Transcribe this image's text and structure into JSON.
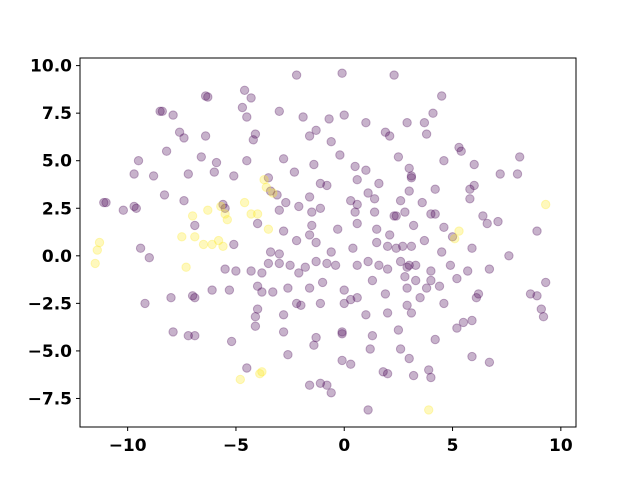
{
  "chart_data": {
    "type": "scatter",
    "title": "",
    "xlabel": "",
    "ylabel": "",
    "xlim": [
      -12.2,
      10.7
    ],
    "ylim": [
      -9.0,
      10.4
    ],
    "xticks": [
      -10,
      -5,
      0,
      5,
      10
    ],
    "xtick_labels": [
      "−10",
      "−5",
      "0",
      "5",
      "10"
    ],
    "yticks": [
      -7.5,
      -5.0,
      -2.5,
      0.0,
      2.5,
      5.0,
      7.5,
      10.0
    ],
    "ytick_labels": [
      "−7.5",
      "−5.0",
      "−2.5",
      "0.0",
      "2.5",
      "5.0",
      "7.5",
      "10.0"
    ],
    "grid": false,
    "legend": false,
    "alpha": 0.3,
    "colors": {
      "class_0": "#440154",
      "class_1": "#fde725"
    },
    "series": [
      {
        "color": "#440154",
        "points": [
          [
            -2.2,
            9.5
          ],
          [
            -0.1,
            9.6
          ],
          [
            2.3,
            9.5
          ],
          [
            -4.6,
            8.7
          ],
          [
            -4.3,
            8.3
          ],
          [
            -6.4,
            8.4
          ],
          [
            -6.3,
            8.35
          ],
          [
            -8.5,
            7.6
          ],
          [
            -8.4,
            7.6
          ],
          [
            -7.9,
            7.4
          ],
          [
            -4.7,
            7.8
          ],
          [
            -4.5,
            7.3
          ],
          [
            -1.9,
            7.3
          ],
          [
            -3.0,
            7.6
          ],
          [
            -0.7,
            7.2
          ],
          [
            0.0,
            7.4
          ],
          [
            1.0,
            7.0
          ],
          [
            2.9,
            7.0
          ],
          [
            3.7,
            7.0
          ],
          [
            4.1,
            7.5
          ],
          [
            4.5,
            8.4
          ],
          [
            -7.6,
            6.5
          ],
          [
            -7.4,
            6.2
          ],
          [
            -6.4,
            6.3
          ],
          [
            -4.1,
            6.4
          ],
          [
            -4.2,
            6.1
          ],
          [
            -1.6,
            6.3
          ],
          [
            -1.3,
            6.6
          ],
          [
            -0.6,
            6.0
          ],
          [
            1.9,
            6.5
          ],
          [
            2.1,
            6.3
          ],
          [
            3.8,
            6.4
          ],
          [
            -8.2,
            5.5
          ],
          [
            -9.5,
            5.0
          ],
          [
            -6.6,
            5.2
          ],
          [
            -5.9,
            4.9
          ],
          [
            -4.5,
            5.0
          ],
          [
            -2.8,
            5.1
          ],
          [
            -1.4,
            4.8
          ],
          [
            -0.2,
            5.3
          ],
          [
            0.5,
            4.7
          ],
          [
            1.0,
            4.5
          ],
          [
            2.5,
            5.2
          ],
          [
            3.0,
            4.6
          ],
          [
            3.1,
            4.2
          ],
          [
            4.6,
            5.0
          ],
          [
            5.3,
            5.7
          ],
          [
            5.4,
            5.5
          ],
          [
            6.0,
            4.8
          ],
          [
            8.1,
            5.2
          ],
          [
            -9.7,
            4.3
          ],
          [
            -8.8,
            4.2
          ],
          [
            -7.2,
            4.3
          ],
          [
            -6.0,
            4.4
          ],
          [
            -5.1,
            4.2
          ],
          [
            -3.5,
            4.1
          ],
          [
            -2.3,
            4.4
          ],
          [
            -1.1,
            3.8
          ],
          [
            -0.8,
            3.7
          ],
          [
            0.6,
            4.0
          ],
          [
            1.1,
            3.3
          ],
          [
            1.6,
            3.8
          ],
          [
            3.1,
            4.1
          ],
          [
            4.2,
            3.5
          ],
          [
            5.8,
            3.5
          ],
          [
            6.0,
            3.7
          ],
          [
            7.2,
            4.3
          ],
          [
            8.0,
            4.3
          ],
          [
            -11.1,
            2.8
          ],
          [
            -11.0,
            2.8
          ],
          [
            -9.7,
            2.6
          ],
          [
            -9.6,
            2.5
          ],
          [
            -8.3,
            3.2
          ],
          [
            -7.4,
            2.9
          ],
          [
            -5.6,
            2.7
          ],
          [
            -5.5,
            2.5
          ],
          [
            -3.4,
            3.4
          ],
          [
            -3.1,
            3.2
          ],
          [
            -2.7,
            2.8
          ],
          [
            -1.6,
            3.1
          ],
          [
            -1.1,
            2.5
          ],
          [
            0.3,
            2.9
          ],
          [
            0.6,
            2.7
          ],
          [
            1.4,
            3.0
          ],
          [
            2.6,
            2.9
          ],
          [
            3.0,
            3.4
          ],
          [
            3.6,
            2.8
          ],
          [
            4.0,
            2.2
          ],
          [
            4.2,
            2.2
          ],
          [
            5.8,
            3.0
          ],
          [
            -10.2,
            2.4
          ],
          [
            -3.0,
            2.4
          ],
          [
            -2.1,
            2.6
          ],
          [
            -1.5,
            2.3
          ],
          [
            0.5,
            2.3
          ],
          [
            1.4,
            2.3
          ],
          [
            2.3,
            2.1
          ],
          [
            2.4,
            2.1
          ],
          [
            2.8,
            2.3
          ],
          [
            6.4,
            2.1
          ],
          [
            -6.9,
            1.6
          ],
          [
            -4.0,
            1.7
          ],
          [
            -2.8,
            1.3
          ],
          [
            -1.5,
            1.6
          ],
          [
            -0.3,
            1.4
          ],
          [
            0.6,
            1.7
          ],
          [
            1.5,
            1.4
          ],
          [
            2.1,
            1.1
          ],
          [
            3.2,
            1.6
          ],
          [
            4.6,
            1.5
          ],
          [
            5.0,
            1.0
          ],
          [
            6.6,
            1.7
          ],
          [
            7.1,
            1.8
          ],
          [
            8.9,
            1.3
          ],
          [
            -9.4,
            0.4
          ],
          [
            -9.0,
            -0.1
          ],
          [
            -5.1,
            0.6
          ],
          [
            -3.4,
            0.2
          ],
          [
            -3.0,
            0.1
          ],
          [
            -2.2,
            0.8
          ],
          [
            -1.6,
            1.1
          ],
          [
            -1.3,
            0.7
          ],
          [
            -0.6,
            0.2
          ],
          [
            0.4,
            0.4
          ],
          [
            1.5,
            0.7
          ],
          [
            2.0,
            0.5
          ],
          [
            2.4,
            0.4
          ],
          [
            2.7,
            0.5
          ],
          [
            3.1,
            0.5
          ],
          [
            3.7,
            0.8
          ],
          [
            4.5,
            0.2
          ],
          [
            5.9,
            0.4
          ],
          [
            7.6,
            0.0
          ],
          [
            -5.5,
            -0.7
          ],
          [
            -5.0,
            -0.8
          ],
          [
            -4.3,
            -0.8
          ],
          [
            -3.8,
            -0.9
          ],
          [
            -3.5,
            -0.4
          ],
          [
            -3.0,
            -0.4
          ],
          [
            -2.5,
            -0.5
          ],
          [
            -2.1,
            -0.9
          ],
          [
            -1.8,
            -0.6
          ],
          [
            -1.3,
            -0.3
          ],
          [
            -0.8,
            -0.4
          ],
          [
            -0.4,
            -0.5
          ],
          [
            0.6,
            -0.5
          ],
          [
            1.1,
            -0.3
          ],
          [
            1.6,
            -0.5
          ],
          [
            2.0,
            -0.7
          ],
          [
            2.6,
            -0.3
          ],
          [
            2.9,
            -0.6
          ],
          [
            3.0,
            -0.5
          ],
          [
            3.3,
            -0.5
          ],
          [
            4.0,
            -0.8
          ],
          [
            4.9,
            -0.5
          ],
          [
            5.7,
            -0.8
          ],
          [
            6.7,
            -0.7
          ],
          [
            -8.0,
            -2.2
          ],
          [
            -7.0,
            -2.1
          ],
          [
            -6.9,
            -2.2
          ],
          [
            -6.1,
            -1.8
          ],
          [
            -5.3,
            -1.8
          ],
          [
            -4.0,
            -1.6
          ],
          [
            -3.8,
            -1.9
          ],
          [
            -3.3,
            -1.9
          ],
          [
            -2.6,
            -1.7
          ],
          [
            -2.2,
            -2.5
          ],
          [
            -1.6,
            -1.7
          ],
          [
            -1.0,
            -1.4
          ],
          [
            0.0,
            -1.8
          ],
          [
            0.6,
            -2.2
          ],
          [
            1.3,
            -1.3
          ],
          [
            1.9,
            -2.0
          ],
          [
            2.8,
            -1.1
          ],
          [
            2.9,
            -1.7
          ],
          [
            3.3,
            -1.3
          ],
          [
            3.5,
            -2.2
          ],
          [
            3.8,
            -1.7
          ],
          [
            4.0,
            -1.3
          ],
          [
            4.4,
            -1.6
          ],
          [
            5.2,
            -1.2
          ],
          [
            6.1,
            -2.2
          ],
          [
            6.2,
            -2.0
          ],
          [
            8.6,
            -2.0
          ],
          [
            8.9,
            -2.1
          ],
          [
            9.3,
            -1.4
          ],
          [
            -4.0,
            -2.8
          ],
          [
            -4.1,
            -3.2
          ],
          [
            -2.8,
            -3.1
          ],
          [
            -2.0,
            -2.6
          ],
          [
            -1.1,
            -2.5
          ],
          [
            0.0,
            -2.5
          ],
          [
            0.3,
            -2.3
          ],
          [
            1.0,
            -3.1
          ],
          [
            2.0,
            -3.0
          ],
          [
            2.9,
            -2.6
          ],
          [
            3.1,
            -3.0
          ],
          [
            4.6,
            -2.5
          ],
          [
            5.9,
            -3.4
          ],
          [
            9.1,
            -2.8
          ],
          [
            -9.2,
            -2.5
          ],
          [
            -6.9,
            -4.2
          ],
          [
            -7.9,
            -4.0
          ],
          [
            -7.2,
            -4.2
          ],
          [
            -5.2,
            -4.5
          ],
          [
            -4.1,
            -3.7
          ],
          [
            -2.8,
            -4.0
          ],
          [
            -1.3,
            -4.3
          ],
          [
            -1.4,
            -4.7
          ],
          [
            -0.1,
            -4.0
          ],
          [
            -0.1,
            -4.1
          ],
          [
            1.3,
            -4.2
          ],
          [
            2.5,
            -3.9
          ],
          [
            4.2,
            -4.4
          ],
          [
            5.2,
            -3.8
          ],
          [
            5.5,
            -3.5
          ],
          [
            9.2,
            -3.2
          ],
          [
            -2.6,
            -5.2
          ],
          [
            -0.1,
            -5.5
          ],
          [
            0.3,
            -5.7
          ],
          [
            1.2,
            -4.9
          ],
          [
            2.6,
            -4.9
          ],
          [
            3.0,
            -5.4
          ],
          [
            5.9,
            -5.3
          ],
          [
            6.7,
            -5.6
          ],
          [
            -1.6,
            -6.8
          ],
          [
            -1.1,
            -6.7
          ],
          [
            -0.8,
            -6.8
          ],
          [
            -0.6,
            -7.2
          ],
          [
            1.8,
            -6.1
          ],
          [
            2.0,
            -6.2
          ],
          [
            3.9,
            -6.0
          ],
          [
            4.0,
            -6.4
          ],
          [
            1.1,
            -8.1
          ],
          [
            3.2,
            -6.3
          ],
          [
            -4.5,
            -5.9
          ]
        ]
      },
      {
        "color": "#fde725",
        "points": [
          [
            -11.3,
            0.7
          ],
          [
            -11.4,
            0.3
          ],
          [
            -11.5,
            -0.4
          ],
          [
            -7.5,
            1.0
          ],
          [
            -7.3,
            -0.6
          ],
          [
            -6.9,
            1.0
          ],
          [
            -6.5,
            0.6
          ],
          [
            -6.1,
            0.6
          ],
          [
            -5.8,
            0.8
          ],
          [
            -5.6,
            0.5
          ],
          [
            -7.0,
            2.1
          ],
          [
            -6.3,
            2.4
          ],
          [
            -5.7,
            2.6
          ],
          [
            -5.5,
            2.2
          ],
          [
            -5.4,
            1.9
          ],
          [
            -4.6,
            2.8
          ],
          [
            -4.3,
            2.2
          ],
          [
            -4.0,
            2.2
          ],
          [
            -3.7,
            4.0
          ],
          [
            -3.6,
            3.6
          ],
          [
            -3.3,
            3.3
          ],
          [
            -3.5,
            1.4
          ],
          [
            -4.8,
            -6.5
          ],
          [
            -3.9,
            -6.2
          ],
          [
            -3.8,
            -6.1
          ],
          [
            5.1,
            0.9
          ],
          [
            5.3,
            1.3
          ],
          [
            9.3,
            2.7
          ],
          [
            3.9,
            -8.1
          ]
        ]
      }
    ]
  }
}
